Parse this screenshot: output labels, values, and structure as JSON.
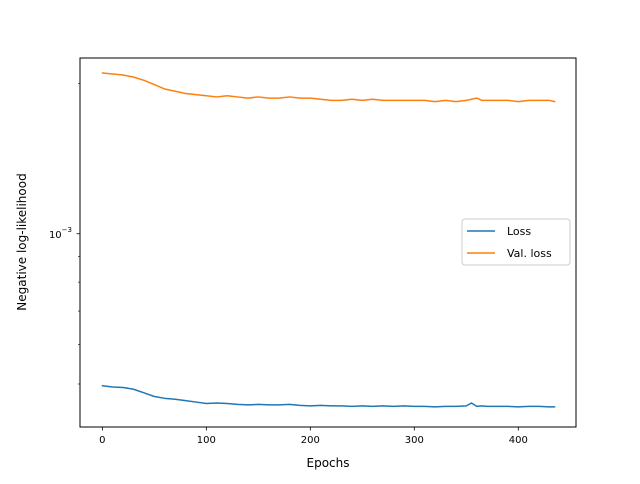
{
  "chart_data": {
    "type": "line",
    "title": "",
    "xlabel": "Epochs",
    "ylabel": "Negative log-likelihood",
    "xlim": [
      -21.5,
      455.5
    ],
    "ylim": [
      0.00041,
      0.00225
    ],
    "yscale": "log",
    "grid": false,
    "legend_position": "center-right",
    "x_ticks": [
      0,
      100,
      200,
      300,
      400
    ],
    "x_tick_labels": [
      "0",
      "100",
      "200",
      "300",
      "400"
    ],
    "y_ticks": [
      0.001
    ],
    "y_tick_labels": [
      {
        "base": "10",
        "exp": "−3"
      }
    ],
    "series": [
      {
        "name": "Loss",
        "color": "#1f77b4",
        "x": [
          0,
          10,
          20,
          30,
          40,
          50,
          60,
          70,
          80,
          90,
          100,
          110,
          120,
          130,
          140,
          150,
          160,
          170,
          180,
          190,
          200,
          210,
          220,
          230,
          240,
          250,
          260,
          270,
          280,
          290,
          300,
          310,
          320,
          330,
          340,
          350,
          355,
          360,
          365,
          370,
          380,
          390,
          400,
          410,
          420,
          430,
          435
        ],
        "y": [
          0.000496,
          0.000493,
          0.000492,
          0.000488,
          0.00048,
          0.000472,
          0.000468,
          0.000466,
          0.000463,
          0.00046,
          0.000457,
          0.000458,
          0.000457,
          0.000455,
          0.000454,
          0.000455,
          0.000454,
          0.000454,
          0.000455,
          0.000453,
          0.000452,
          0.000453,
          0.000452,
          0.000452,
          0.000451,
          0.000452,
          0.000451,
          0.000452,
          0.000451,
          0.000452,
          0.000451,
          0.000451,
          0.00045,
          0.000451,
          0.000451,
          0.000452,
          0.000458,
          0.000451,
          0.000452,
          0.000451,
          0.000451,
          0.000451,
          0.00045,
          0.000451,
          0.000451,
          0.00045,
          0.00045
        ]
      },
      {
        "name": "Val. loss",
        "color": "#ff7f0e",
        "x": [
          0,
          10,
          20,
          30,
          40,
          50,
          60,
          70,
          80,
          90,
          100,
          110,
          120,
          130,
          140,
          150,
          160,
          170,
          180,
          190,
          200,
          210,
          220,
          230,
          240,
          250,
          260,
          270,
          280,
          290,
          300,
          310,
          320,
          330,
          340,
          350,
          355,
          360,
          365,
          370,
          380,
          390,
          400,
          410,
          420,
          430,
          435
        ],
        "y": [
          0.0021,
          0.00209,
          0.00208,
          0.00206,
          0.00203,
          0.00199,
          0.00195,
          0.00193,
          0.00191,
          0.0019,
          0.00189,
          0.00188,
          0.00189,
          0.00188,
          0.00187,
          0.00188,
          0.00187,
          0.00187,
          0.00188,
          0.00187,
          0.00187,
          0.00186,
          0.00185,
          0.00185,
          0.00186,
          0.00185,
          0.00186,
          0.00185,
          0.00185,
          0.00185,
          0.00185,
          0.00185,
          0.00184,
          0.00185,
          0.00184,
          0.00185,
          0.00186,
          0.00187,
          0.00185,
          0.00185,
          0.00185,
          0.00185,
          0.00184,
          0.00185,
          0.00185,
          0.00185,
          0.00184
        ]
      }
    ]
  }
}
